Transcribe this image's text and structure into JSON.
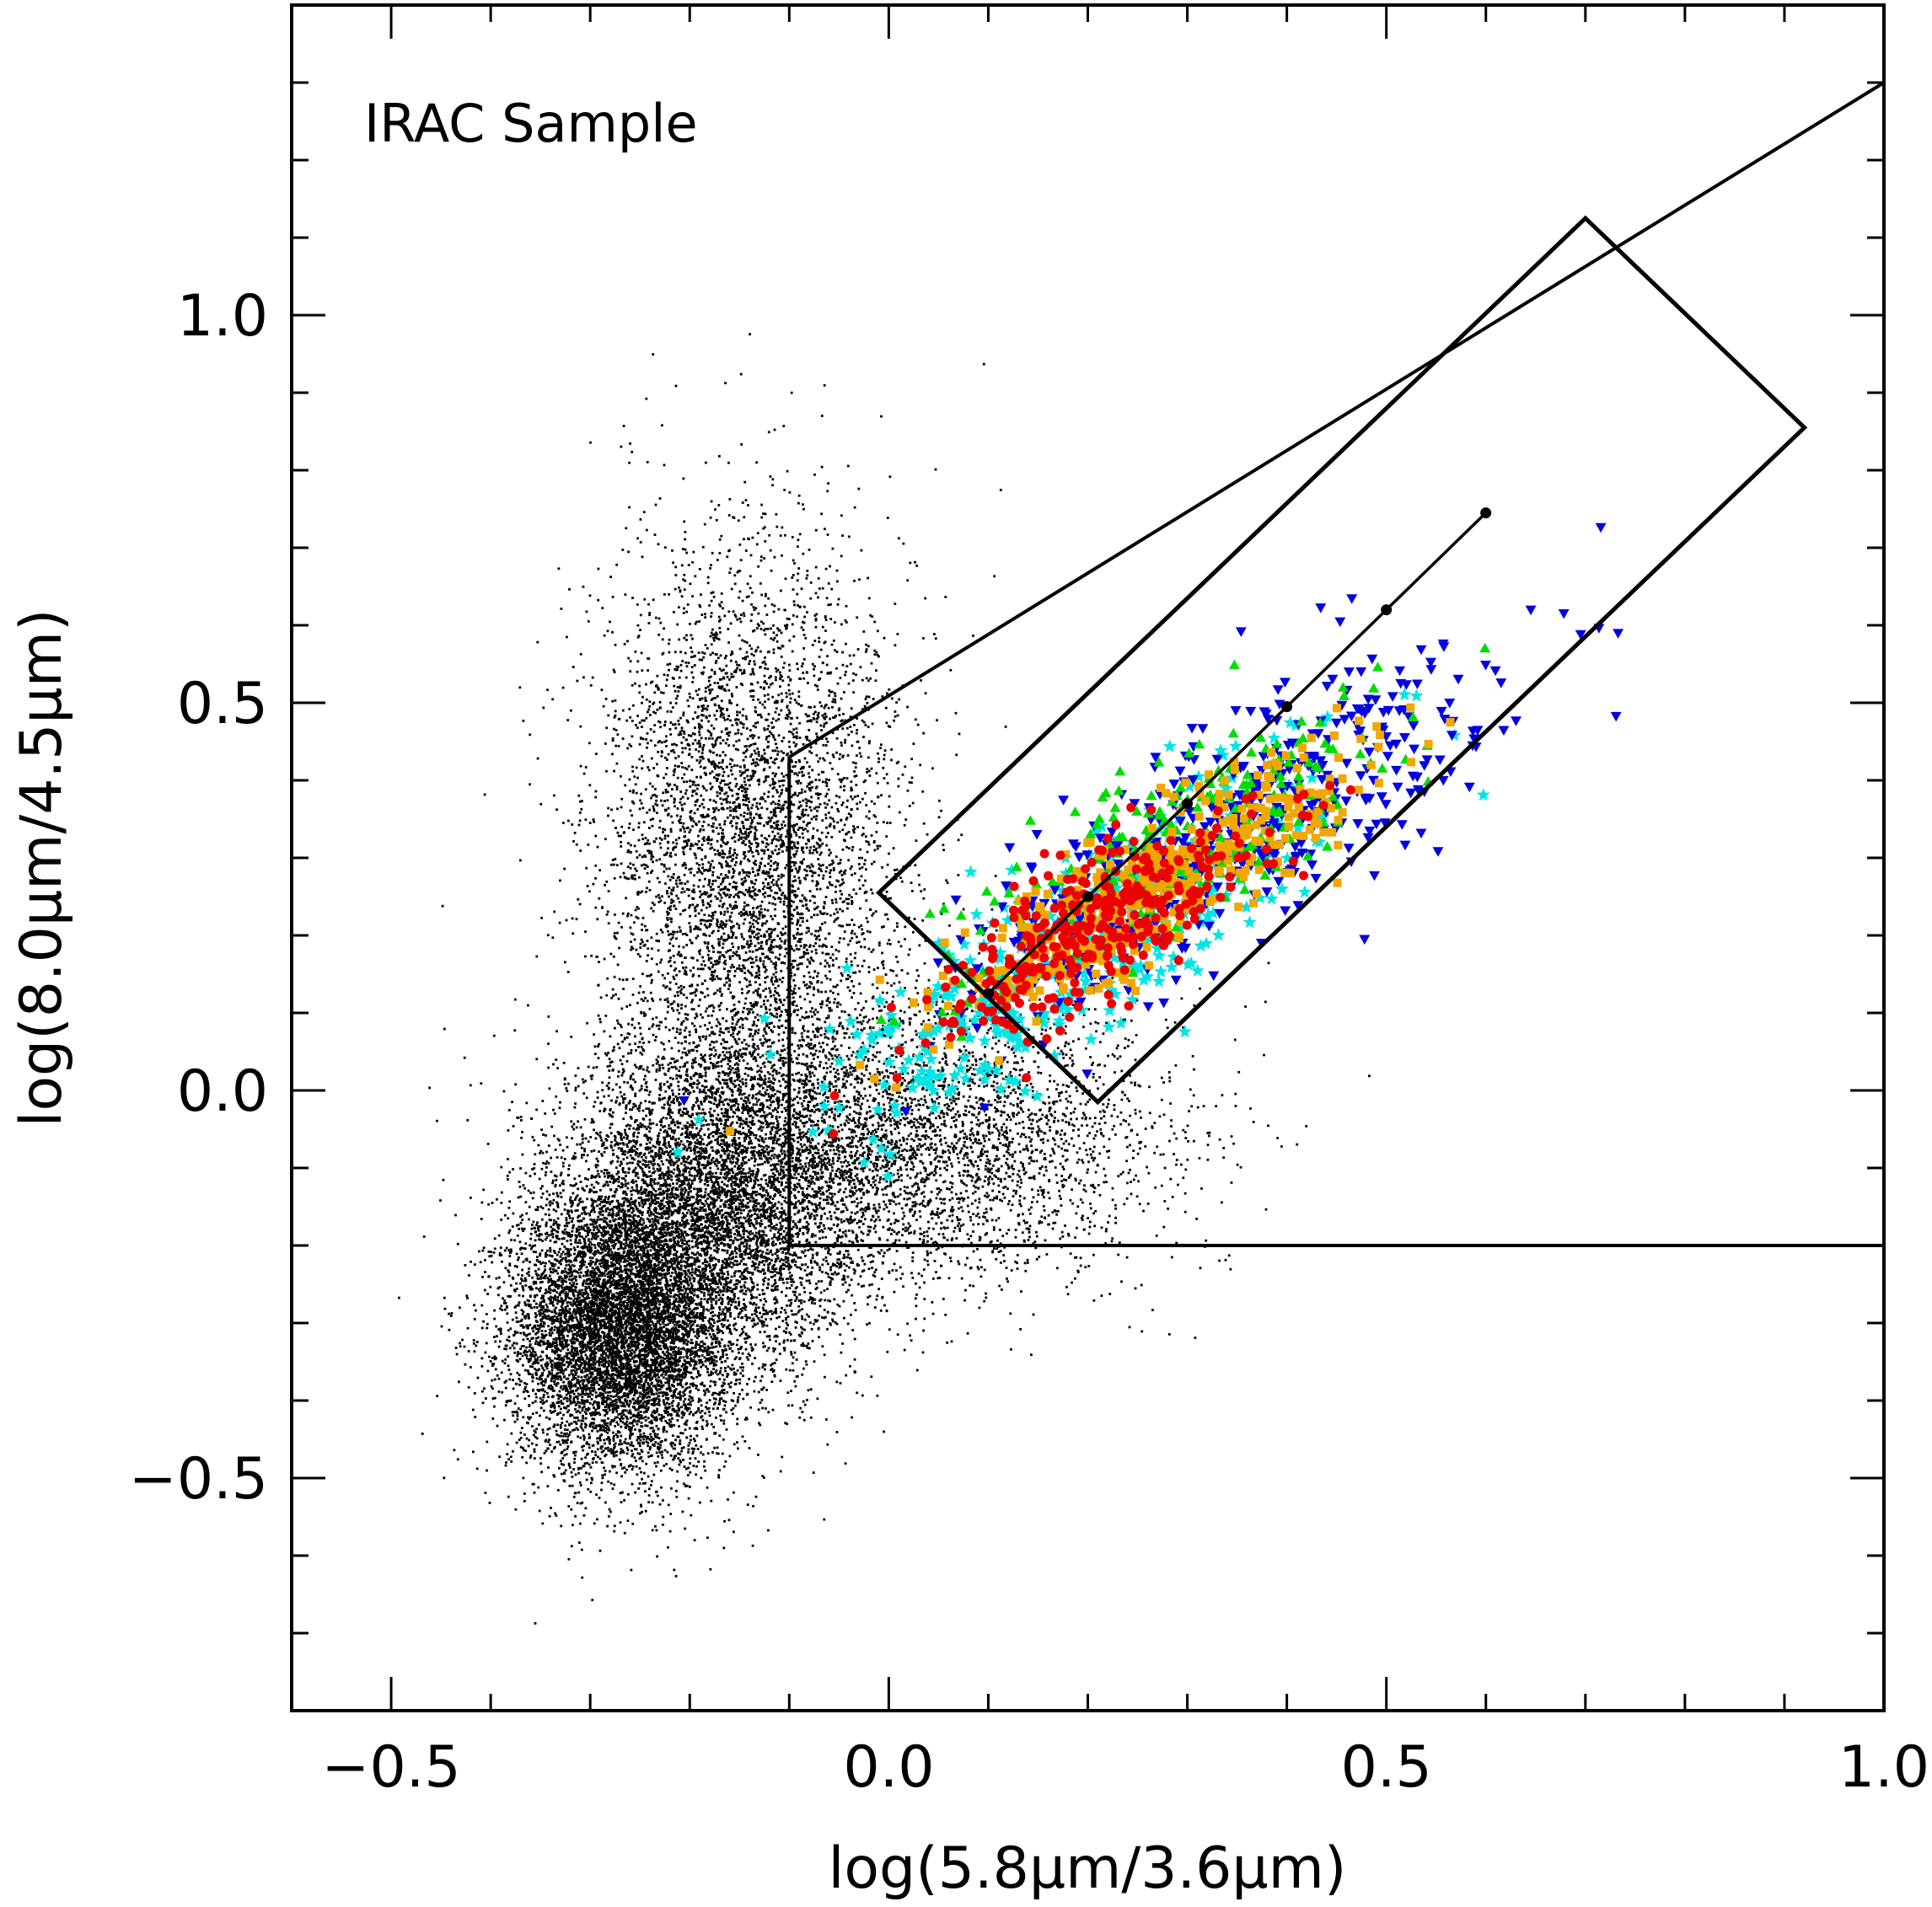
{
  "chart_data": {
    "type": "scatter",
    "title": "IRAC Sample",
    "xlabel": "log(5.8μm/3.6μm)",
    "ylabel": "log(8.0μm/4.5μm)",
    "xlim": [
      -0.6,
      1.0
    ],
    "ylim": [
      -0.8,
      1.4
    ],
    "x_ticks": [
      -0.5,
      0.0,
      0.5,
      1.0
    ],
    "x_tick_labels": [
      "−0.5",
      "0.0",
      "0.5",
      "1.0"
    ],
    "y_ticks": [
      -0.5,
      0.0,
      0.5,
      1.0
    ],
    "y_tick_labels": [
      "−0.5",
      "0.0",
      "0.5",
      "1.0"
    ],
    "x_minor_step": 0.1,
    "y_minor_step": 0.1,
    "background_sample": {
      "name": "IRAC Sample",
      "color": "#000000",
      "marker": "dot",
      "count": 22000,
      "clusters": [
        {
          "center": [
            -0.27,
            -0.31
          ],
          "sigma": [
            0.055,
            0.09
          ],
          "weight": 0.34
        },
        {
          "center": [
            -0.17,
            -0.15
          ],
          "sigma": [
            0.08,
            0.11
          ],
          "weight": 0.26
        },
        {
          "center": [
            -0.14,
            0.3
          ],
          "sigma": [
            0.075,
            0.2
          ],
          "weight": 0.24
        },
        {
          "center": [
            0.04,
            -0.06
          ],
          "sigma": [
            0.12,
            0.09
          ],
          "weight": 0.16
        }
      ]
    },
    "series": [
      {
        "name": "cyan-stars",
        "color": "#00e5e5",
        "marker": "star",
        "count": 420,
        "center": [
          0.19,
          0.18
        ],
        "major_sigma": 0.16,
        "minor_sigma": 0.05,
        "angle_deg": 42
      },
      {
        "name": "blue-triangles-down",
        "color": "#0000e0",
        "marker": "triangle-down",
        "count": 520,
        "center": [
          0.33,
          0.32
        ],
        "major_sigma": 0.17,
        "minor_sigma": 0.055,
        "angle_deg": 40
      },
      {
        "name": "green-triangles-up",
        "color": "#00dd00",
        "marker": "triangle-up",
        "count": 260,
        "center": [
          0.3,
          0.32
        ],
        "major_sigma": 0.13,
        "minor_sigma": 0.045,
        "angle_deg": 40
      },
      {
        "name": "orange-squares",
        "color": "#f0a800",
        "marker": "square",
        "count": 480,
        "center": [
          0.27,
          0.27
        ],
        "major_sigma": 0.13,
        "minor_sigma": 0.04,
        "angle_deg": 40
      },
      {
        "name": "red-circles",
        "color": "#ee0000",
        "marker": "circle",
        "count": 340,
        "center": [
          0.21,
          0.21
        ],
        "major_sigma": 0.1,
        "minor_sigma": 0.035,
        "angle_deg": 40
      }
    ],
    "track": {
      "color": "#000000",
      "points": [
        [
          0.1,
          0.125
        ],
        [
          0.2,
          0.25
        ],
        [
          0.3,
          0.37
        ],
        [
          0.4,
          0.495
        ],
        [
          0.5,
          0.62
        ],
        [
          0.6,
          0.745
        ]
      ]
    },
    "selection_wedge": {
      "color": "#000000",
      "points": [
        [
          1.0,
          1.3
        ],
        [
          -0.1,
          0.43
        ],
        [
          -0.1,
          -0.2
        ],
        [
          1.0,
          -0.2
        ]
      ]
    },
    "selection_box": {
      "color": "#000000",
      "points": [
        [
          -0.01,
          0.255
        ],
        [
          0.7,
          1.125
        ],
        [
          0.92,
          0.855
        ],
        [
          0.21,
          -0.015
        ]
      ]
    }
  }
}
